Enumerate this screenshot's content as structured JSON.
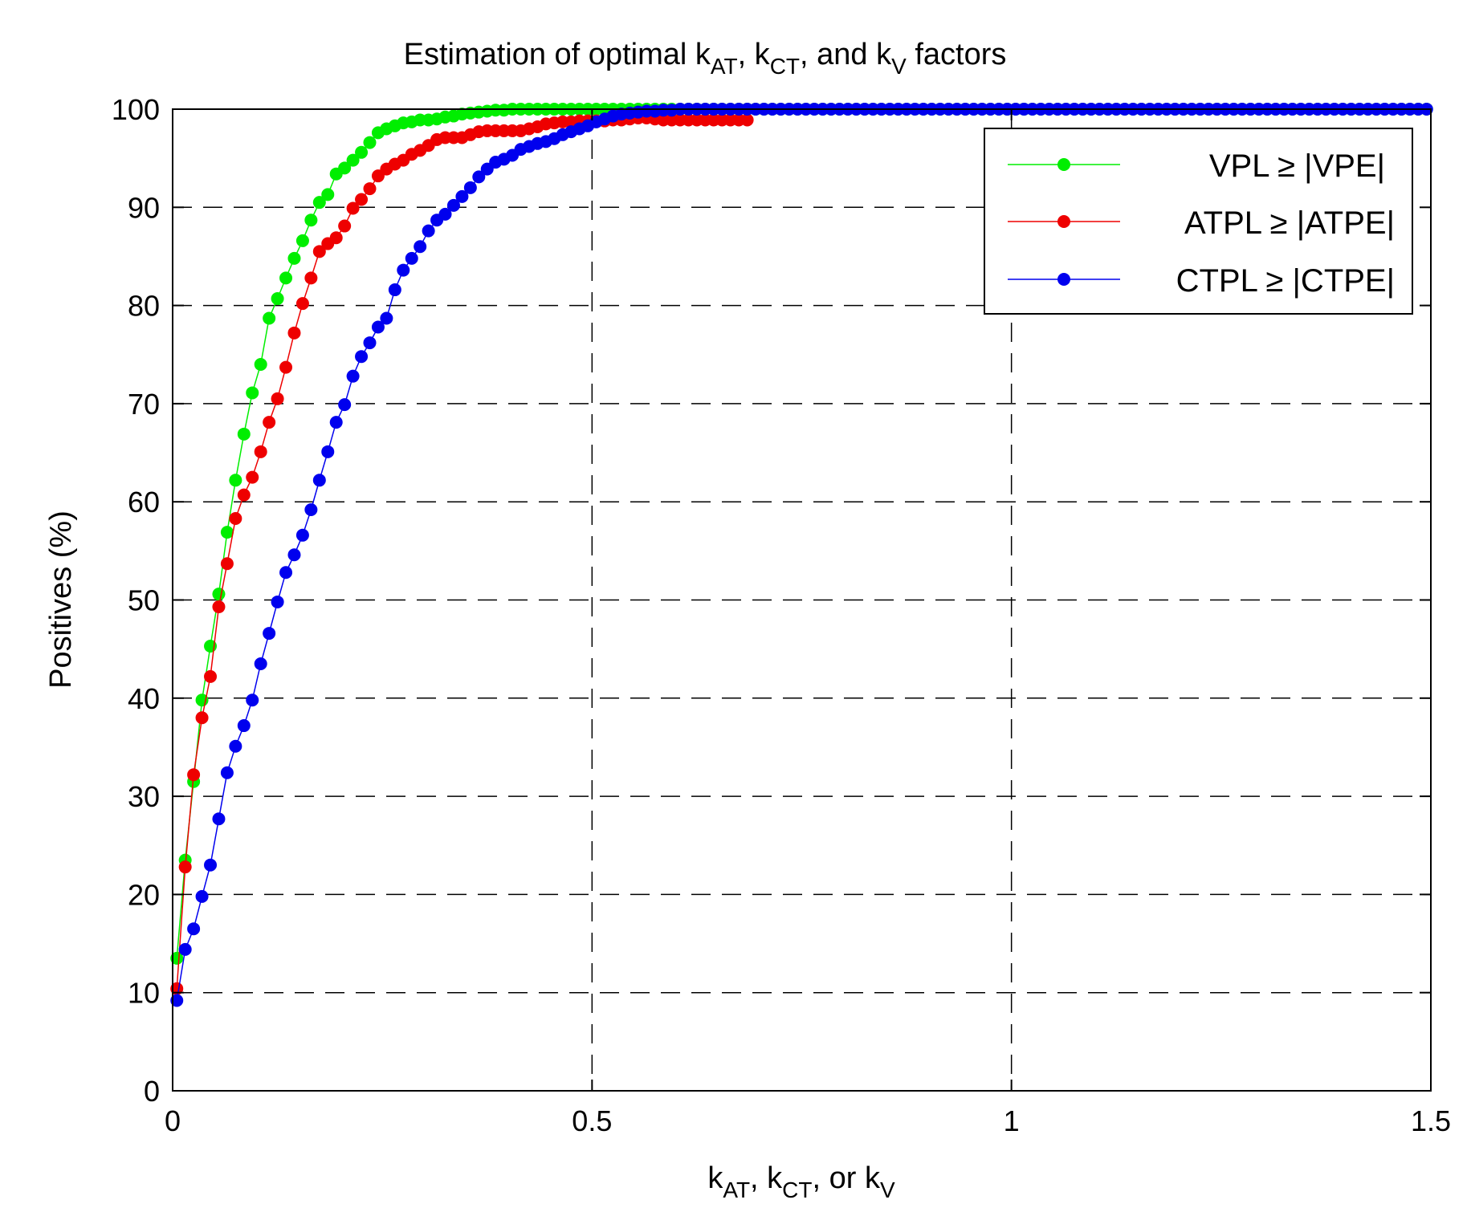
{
  "chart_data": {
    "type": "line",
    "title": {
      "prefix": "Estimation of optimal k",
      "sub1": "AT",
      "sep1": ", k",
      "sub2": "CT",
      "sep2": ", and k",
      "sub3": "V",
      "suffix": " factors"
    },
    "xlabel": {
      "prefix": "k",
      "sub1": "AT",
      "sep1": ", k",
      "sub2": "CT",
      "sep2": ", or k",
      "sub3": "V"
    },
    "ylabel": "Positives (%)",
    "xlim": [
      0,
      1.5
    ],
    "ylim": [
      0,
      100
    ],
    "xticks": [
      0,
      0.5,
      1,
      1.5
    ],
    "xtick_labels": [
      "0",
      "0.5",
      "1",
      "1.5"
    ],
    "yticks": [
      0,
      10,
      20,
      30,
      40,
      50,
      60,
      70,
      80,
      90,
      100
    ],
    "ytick_labels": [
      "0",
      "10",
      "20",
      "30",
      "40",
      "50",
      "60",
      "70",
      "80",
      "90",
      "100"
    ],
    "grid": "dashed",
    "legend_position": "top-right",
    "series": [
      {
        "name": "VPL ≥ |VPE|",
        "color": "#00ee00",
        "x": [
          0.005,
          0.015,
          0.025,
          0.035,
          0.045,
          0.055,
          0.065,
          0.075,
          0.085,
          0.095,
          0.105,
          0.115,
          0.125,
          0.135,
          0.145,
          0.155,
          0.165,
          0.175,
          0.185,
          0.195,
          0.205,
          0.215,
          0.225,
          0.235,
          0.245,
          0.255,
          0.265,
          0.275,
          0.285,
          0.295,
          0.305,
          0.315,
          0.325,
          0.335,
          0.345,
          0.355,
          0.365,
          0.375,
          0.385,
          0.395,
          0.405,
          0.415,
          0.425,
          0.435,
          0.445,
          0.455,
          0.465,
          0.475,
          0.485,
          0.495,
          0.505,
          0.515,
          0.525,
          0.535,
          0.545,
          0.555,
          0.565,
          0.575,
          0.585,
          0.595,
          0.605,
          0.615,
          0.625,
          0.635,
          0.645,
          0.655,
          0.665,
          0.675,
          0.685,
          0.695,
          0.705,
          0.715,
          0.725,
          0.735,
          0.745,
          0.755,
          0.765,
          0.775,
          0.785,
          0.795,
          0.805,
          0.815,
          0.825,
          0.835,
          0.845,
          0.855,
          0.865,
          0.875,
          0.885,
          0.895,
          0.905,
          0.915,
          0.925,
          0.935,
          0.945,
          0.955,
          0.965,
          0.975,
          0.985,
          0.995,
          1.005,
          1.015,
          1.025,
          1.035,
          1.045,
          1.055,
          1.065,
          1.075,
          1.085,
          1.095,
          1.105,
          1.115,
          1.125,
          1.135,
          1.145,
          1.155,
          1.165,
          1.175,
          1.185,
          1.195,
          1.205,
          1.215,
          1.225,
          1.235,
          1.245,
          1.255,
          1.265,
          1.275,
          1.285,
          1.295,
          1.305,
          1.315,
          1.325,
          1.335,
          1.345,
          1.355,
          1.365,
          1.375,
          1.385,
          1.395,
          1.405,
          1.415,
          1.425,
          1.435,
          1.445,
          1.455,
          1.465,
          1.475,
          1.485,
          1.495
        ],
        "y": [
          13.5,
          23.5,
          31.5,
          39.8,
          45.3,
          50.6,
          56.9,
          62.2,
          66.9,
          71.1,
          74.0,
          78.7,
          80.7,
          82.8,
          84.8,
          86.6,
          88.7,
          90.5,
          91.3,
          93.4,
          94.0,
          94.8,
          95.6,
          96.6,
          97.6,
          98.0,
          98.3,
          98.6,
          98.7,
          98.9,
          98.9,
          99.0,
          99.2,
          99.3,
          99.5,
          99.6,
          99.7,
          99.8,
          99.9,
          99.9,
          100,
          100,
          100,
          100,
          100,
          100,
          100,
          100,
          100,
          100,
          100,
          100,
          100,
          100,
          100,
          100,
          100,
          100,
          100,
          100,
          100,
          100,
          100,
          100,
          100,
          100,
          100,
          100,
          100,
          100,
          100,
          100,
          100,
          100,
          100,
          100,
          100,
          100,
          100,
          100,
          100,
          100,
          100,
          100,
          100,
          100,
          100,
          100,
          100,
          100,
          100,
          100,
          100,
          100,
          100,
          100,
          100,
          100,
          100,
          100,
          100,
          100,
          100,
          100,
          100,
          100,
          100,
          100,
          100,
          100,
          100,
          100,
          100,
          100,
          100,
          100,
          100,
          100,
          100,
          100,
          100,
          100,
          100,
          100,
          100,
          100,
          100,
          100,
          100,
          100,
          100,
          100,
          100,
          100,
          100,
          100,
          100,
          100,
          100,
          100,
          100,
          100,
          100,
          100,
          100,
          100,
          100,
          100,
          100,
          100
        ]
      },
      {
        "name": "ATPL ≥ |ATPE|",
        "color": "#ee0000",
        "x": [
          0.005,
          0.015,
          0.025,
          0.035,
          0.045,
          0.055,
          0.065,
          0.075,
          0.085,
          0.095,
          0.105,
          0.115,
          0.125,
          0.135,
          0.145,
          0.155,
          0.165,
          0.175,
          0.185,
          0.195,
          0.205,
          0.215,
          0.225,
          0.235,
          0.245,
          0.255,
          0.265,
          0.275,
          0.285,
          0.295,
          0.305,
          0.315,
          0.325,
          0.335,
          0.345,
          0.355,
          0.365,
          0.375,
          0.385,
          0.395,
          0.405,
          0.415,
          0.425,
          0.435,
          0.445,
          0.455,
          0.465,
          0.475,
          0.485,
          0.495,
          0.505,
          0.515,
          0.525,
          0.535,
          0.545,
          0.555,
          0.565,
          0.575,
          0.585,
          0.595,
          0.605,
          0.615,
          0.625,
          0.635,
          0.645,
          0.655,
          0.665,
          0.675,
          0.685
        ],
        "y": [
          10.4,
          22.8,
          32.2,
          38.0,
          42.2,
          49.3,
          53.7,
          58.3,
          60.7,
          62.5,
          65.1,
          68.1,
          70.5,
          73.7,
          77.2,
          80.2,
          82.8,
          85.5,
          86.3,
          86.9,
          88.1,
          89.9,
          90.8,
          91.9,
          93.2,
          93.9,
          94.4,
          94.8,
          95.4,
          95.8,
          96.3,
          96.9,
          97.1,
          97.1,
          97.1,
          97.4,
          97.7,
          97.8,
          97.8,
          97.8,
          97.8,
          97.8,
          98.0,
          98.2,
          98.5,
          98.6,
          98.7,
          98.7,
          98.8,
          98.8,
          98.8,
          98.8,
          98.9,
          98.9,
          99.0,
          99.1,
          99.1,
          99.0,
          98.9,
          98.9,
          98.9,
          98.9,
          98.9,
          98.9,
          98.9,
          98.9,
          98.9,
          98.9,
          98.9
        ]
      },
      {
        "name": "CTPL ≥ |CTPE|",
        "color": "#0000ee",
        "x": [
          0.005,
          0.015,
          0.025,
          0.035,
          0.045,
          0.055,
          0.065,
          0.075,
          0.085,
          0.095,
          0.105,
          0.115,
          0.125,
          0.135,
          0.145,
          0.155,
          0.165,
          0.175,
          0.185,
          0.195,
          0.205,
          0.215,
          0.225,
          0.235,
          0.245,
          0.255,
          0.265,
          0.275,
          0.285,
          0.295,
          0.305,
          0.315,
          0.325,
          0.335,
          0.345,
          0.355,
          0.365,
          0.375,
          0.385,
          0.395,
          0.405,
          0.415,
          0.425,
          0.435,
          0.445,
          0.455,
          0.465,
          0.475,
          0.485,
          0.495,
          0.505,
          0.515,
          0.525,
          0.535,
          0.545,
          0.555,
          0.565,
          0.575,
          0.585,
          0.595,
          0.605,
          0.615,
          0.625,
          0.635,
          0.645,
          0.655,
          0.665,
          0.675,
          0.685,
          0.695,
          0.705,
          0.715,
          0.725,
          0.735,
          0.745,
          0.755,
          0.765,
          0.775,
          0.785,
          0.795,
          0.805,
          0.815,
          0.825,
          0.835,
          0.845,
          0.855,
          0.865,
          0.875,
          0.885,
          0.895,
          0.905,
          0.915,
          0.925,
          0.935,
          0.945,
          0.955,
          0.965,
          0.975,
          0.985,
          0.995,
          1.005,
          1.015,
          1.025,
          1.035,
          1.045,
          1.055,
          1.065,
          1.075,
          1.085,
          1.095,
          1.105,
          1.115,
          1.125,
          1.135,
          1.145,
          1.155,
          1.165,
          1.175,
          1.185,
          1.195,
          1.205,
          1.215,
          1.225,
          1.235,
          1.245,
          1.255,
          1.265,
          1.275,
          1.285,
          1.295,
          1.305,
          1.315,
          1.325,
          1.335,
          1.345,
          1.355,
          1.365,
          1.375,
          1.385,
          1.395,
          1.405,
          1.415,
          1.425,
          1.435,
          1.445,
          1.455,
          1.465,
          1.475,
          1.485,
          1.495
        ],
        "y": [
          9.2,
          14.4,
          16.5,
          19.8,
          23.0,
          27.7,
          32.4,
          35.1,
          37.2,
          39.8,
          43.5,
          46.6,
          49.8,
          52.8,
          54.6,
          56.6,
          59.2,
          62.2,
          65.1,
          68.1,
          69.9,
          72.8,
          74.8,
          76.2,
          77.8,
          78.7,
          81.6,
          83.6,
          84.8,
          86.0,
          87.6,
          88.7,
          89.3,
          90.2,
          91.1,
          92.0,
          93.1,
          93.9,
          94.6,
          94.9,
          95.3,
          95.9,
          96.2,
          96.5,
          96.7,
          97.0,
          97.4,
          97.7,
          98.0,
          98.3,
          98.7,
          99.0,
          99.3,
          99.5,
          99.6,
          99.7,
          99.8,
          99.8,
          99.9,
          99.9,
          100,
          100,
          100,
          100,
          100,
          100,
          100,
          100,
          100,
          100,
          100,
          100,
          100,
          100,
          100,
          100,
          100,
          100,
          100,
          100,
          100,
          100,
          100,
          100,
          100,
          100,
          100,
          100,
          100,
          100,
          100,
          100,
          100,
          100,
          100,
          100,
          100,
          100,
          100,
          100,
          100,
          100,
          100,
          100,
          100,
          100,
          100,
          100,
          100,
          100,
          100,
          100,
          100,
          100,
          100,
          100,
          100,
          100,
          100,
          100,
          100,
          100,
          100,
          100,
          100,
          100,
          100,
          100,
          100,
          100,
          100,
          100,
          100,
          100,
          100,
          100,
          100,
          100,
          100,
          100,
          100,
          100,
          100,
          100,
          100,
          100,
          100,
          100,
          100,
          100
        ]
      }
    ]
  }
}
